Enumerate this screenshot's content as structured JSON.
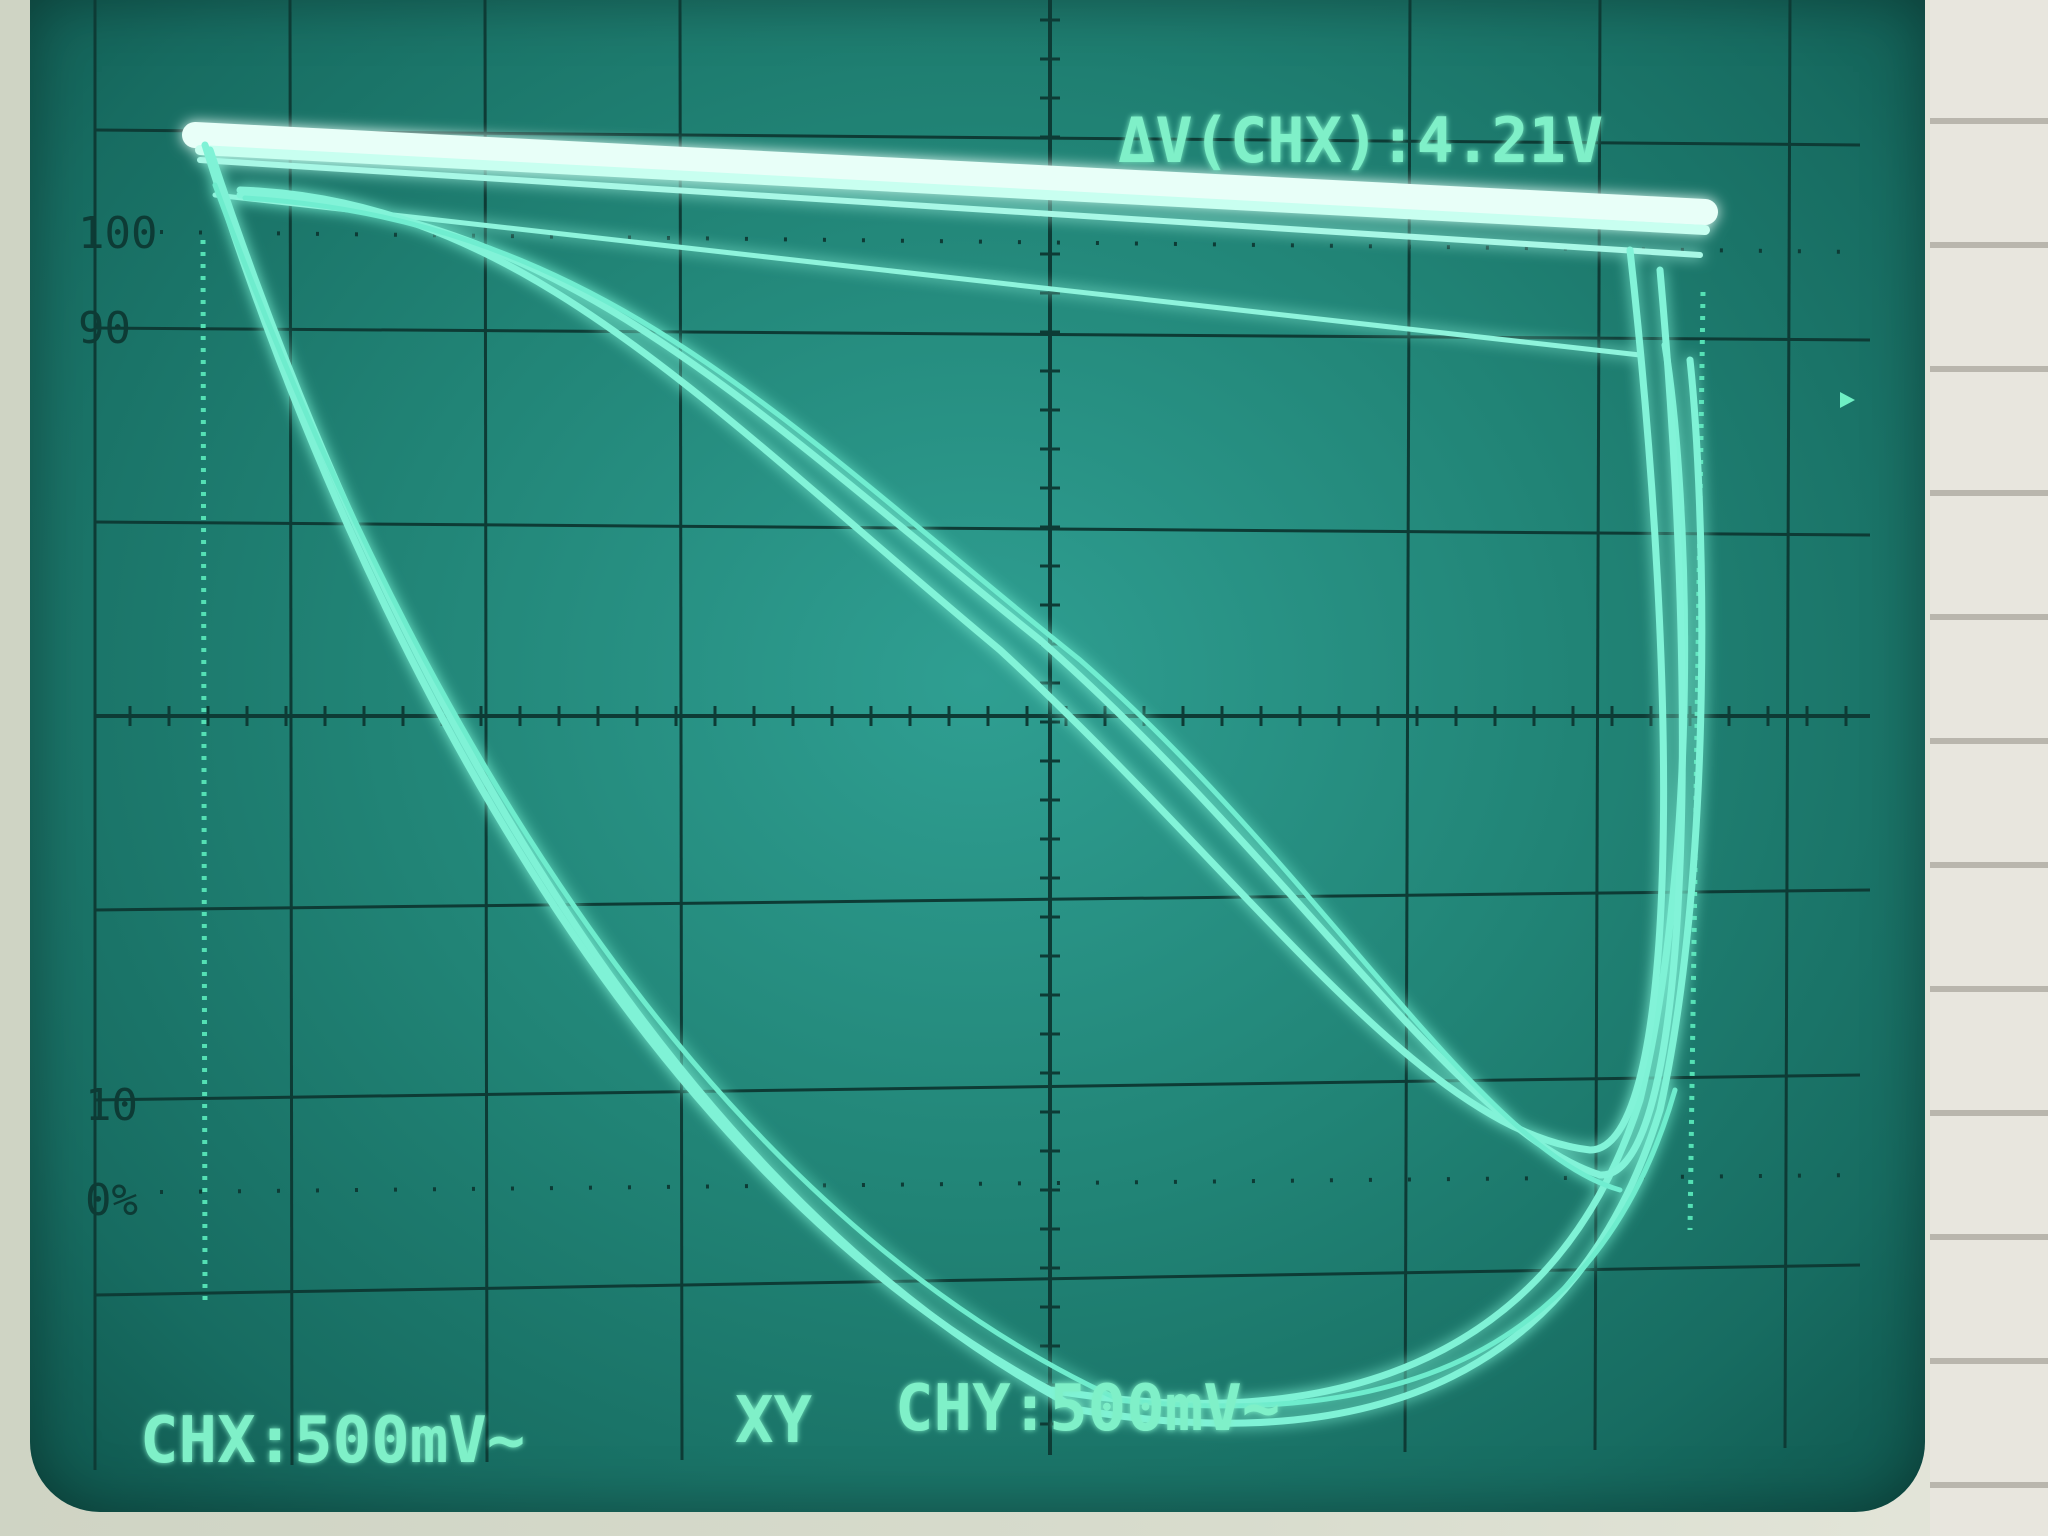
{
  "readout": {
    "delta_v": "ΔV(CHX):4.21V",
    "chx": "CHX:500mV~",
    "mode": "XY",
    "chy": "CHY:500mV~"
  },
  "graticule_labels": {
    "p100": "100",
    "p90": "90",
    "p10": "10",
    "p0": "0%"
  },
  "colors": {
    "trace": "#dffff6",
    "trace_glow": "#5ef0d0",
    "grid": "#0d3b35",
    "screen": "#218476"
  }
}
